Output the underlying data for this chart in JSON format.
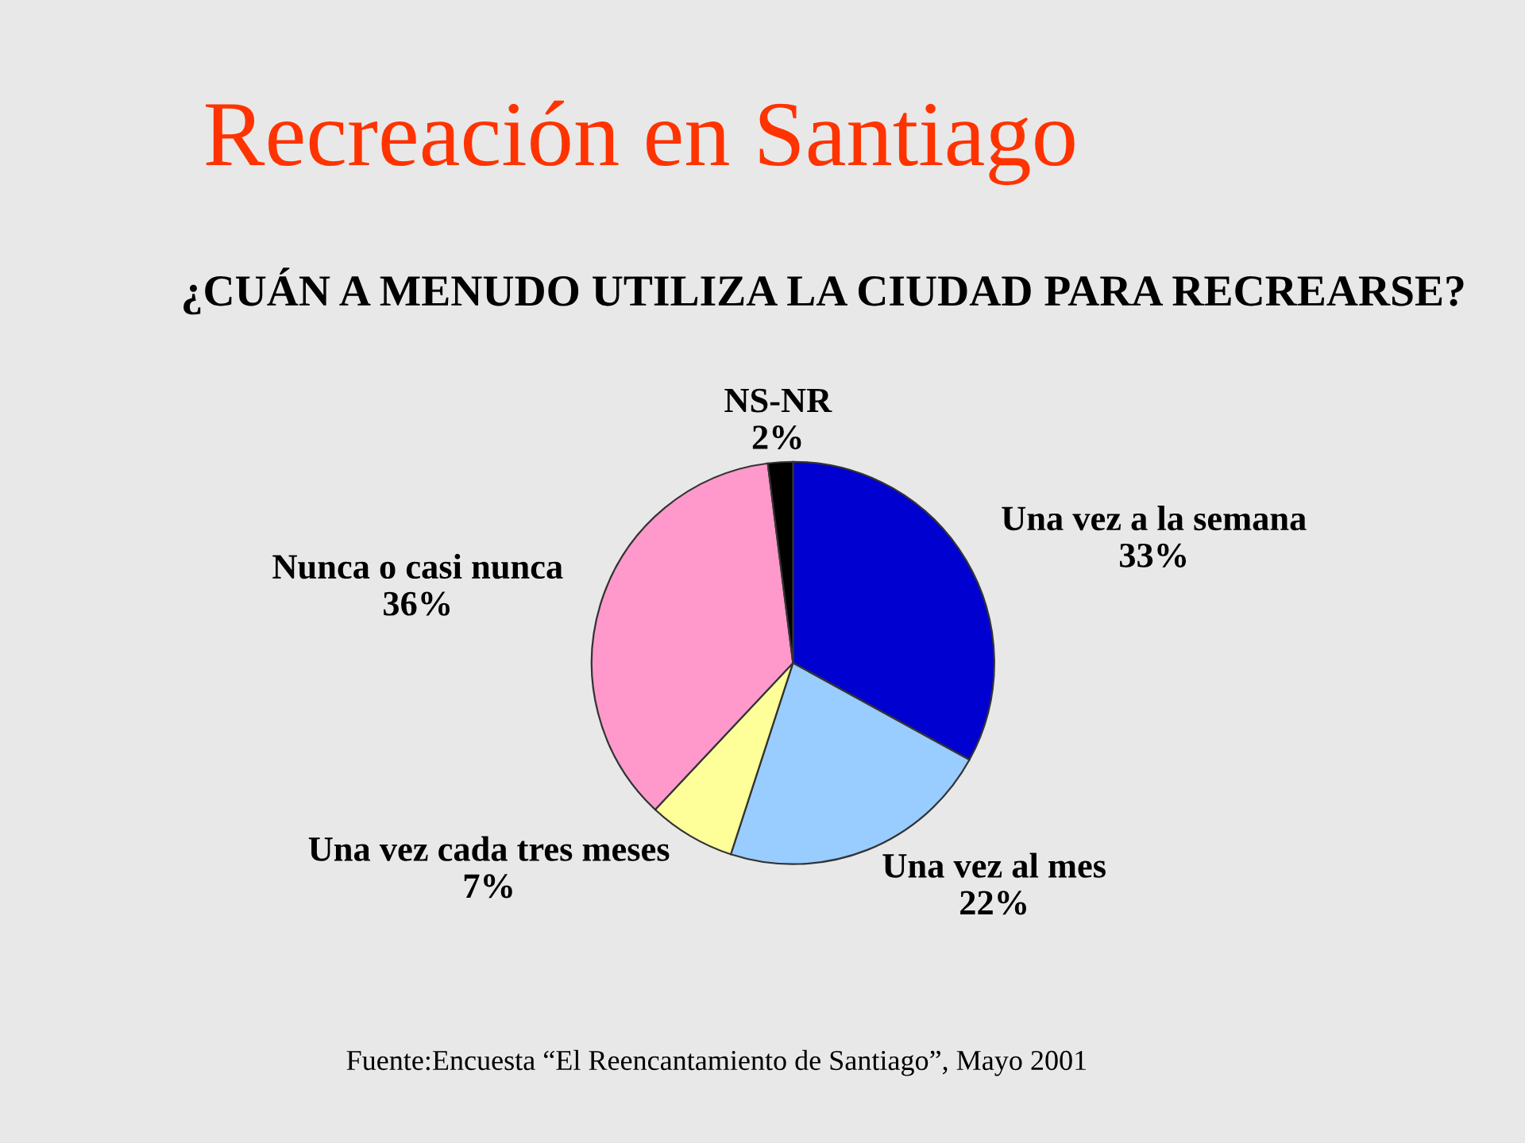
{
  "chart_data": {
    "type": "pie",
    "title": "Recreación en Santiago",
    "subtitle": "¿CUÁN A MENUDO UTILIZA LA CIUDAD PARA RECREARSE?",
    "categories": [
      "Una vez a la semana",
      "Una vez al mes",
      "Una vez cada tres meses",
      "Nunca o casi nunca",
      "NS-NR"
    ],
    "values": [
      33,
      22,
      7,
      36,
      2
    ],
    "colors": [
      "#0000d0",
      "#99ccff",
      "#ffff99",
      "#ff99cc",
      "#000000"
    ],
    "value_labels": [
      "33%",
      "22%",
      "7%",
      "36%",
      "2%"
    ],
    "annotations": [
      "Fuente:Encuesta “El Reencantamiento de Santiago”, Mayo 2001"
    ]
  }
}
